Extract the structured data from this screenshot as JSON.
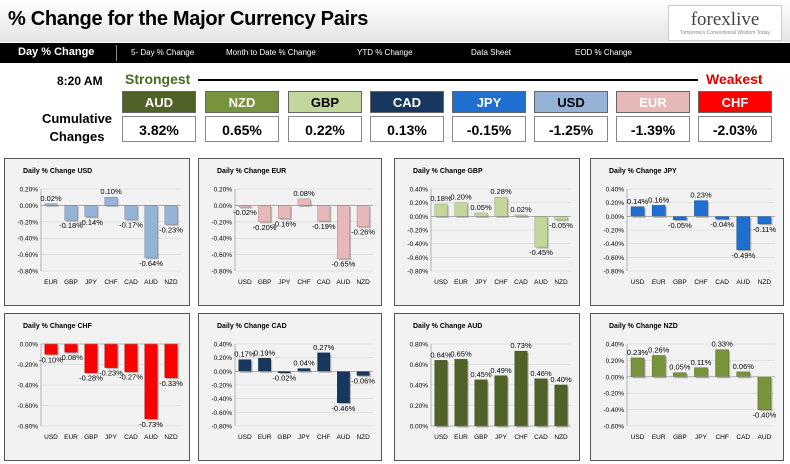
{
  "header": {
    "title": "% Change for the Major Currency Pairs",
    "logo_text": "forexlive",
    "logo_tagline": "Tomorrow's Conventional Wisdom Today"
  },
  "nav": {
    "items": [
      "Day % Change",
      "5- Day % Change",
      "Month to Date % Change",
      "YTD % Change",
      "Data Sheet",
      "EOD % Change"
    ]
  },
  "summary": {
    "time": "8:20 AM",
    "strongest_label": "Strongest",
    "weakest_label": "Weakest",
    "row_label": "Cumulative Changes",
    "currencies": [
      {
        "code": "AUD",
        "value": "3.82%",
        "color": "#4f6228",
        "text_color": "#ffffff"
      },
      {
        "code": "NZD",
        "value": "0.65%",
        "color": "#77933c",
        "text_color": "#ffffff"
      },
      {
        "code": "GBP",
        "value": "0.22%",
        "color": "#c3d69b",
        "text_color": "#000000"
      },
      {
        "code": "CAD",
        "value": "0.13%",
        "color": "#17375e",
        "text_color": "#ffffff"
      },
      {
        "code": "JPY",
        "value": "-0.15%",
        "color": "#1f6fd0",
        "text_color": "#ffffff"
      },
      {
        "code": "USD",
        "value": "-1.25%",
        "color": "#95b3d7",
        "text_color": "#000000"
      },
      {
        "code": "EUR",
        "value": "-1.39%",
        "color": "#e6b9b8",
        "text_color": "#ffffff"
      },
      {
        "code": "CHF",
        "value": "-2.03%",
        "color": "#ff0000",
        "text_color": "#ffffff"
      }
    ]
  },
  "chart_data": [
    {
      "type": "bar",
      "title": "Daily % Change USD",
      "categories": [
        "EUR",
        "GBP",
        "JPY",
        "CHF",
        "CAD",
        "AUD",
        "NZD"
      ],
      "values": [
        0.02,
        -0.18,
        -0.14,
        0.1,
        -0.17,
        -0.64,
        -0.23
      ],
      "labels": [
        "0.02%",
        "-0.18%",
        "-0.14%",
        "0.10%",
        "-0.17%",
        "-0.64%",
        "-0.23%"
      ],
      "ylim": [
        -0.8,
        0.2
      ],
      "yticks": [
        0.2,
        0,
        -0.2,
        -0.4,
        -0.6,
        -0.8
      ],
      "ytick_labels": [
        "0.20%",
        "0.00%",
        "-0.20%",
        "-0.40%",
        "-0.60%",
        "-0.80%"
      ],
      "color": "#95b3d7"
    },
    {
      "type": "bar",
      "title": "Daily % Change EUR",
      "categories": [
        "USD",
        "GBP",
        "JPY",
        "CHF",
        "CAD",
        "AUD",
        "NZD"
      ],
      "values": [
        -0.02,
        -0.2,
        -0.16,
        0.08,
        -0.19,
        -0.65,
        -0.26
      ],
      "labels": [
        "-0.02%",
        "-0.20%",
        "-0.16%",
        "0.08%",
        "-0.19%",
        "-0.65%",
        "-0.26%"
      ],
      "ylim": [
        -0.8,
        0.2
      ],
      "yticks": [
        0.2,
        0,
        -0.2,
        -0.4,
        -0.6,
        -0.8
      ],
      "ytick_labels": [
        "0.20%",
        "0.00%",
        "-0.20%",
        "-0.40%",
        "-0.60%",
        "-0.80%"
      ],
      "color": "#e6b9b8"
    },
    {
      "type": "bar",
      "title": "Daily % Change GBP",
      "categories": [
        "USD",
        "EUR",
        "JPY",
        "CHF",
        "CAD",
        "AUD",
        "NZD"
      ],
      "values": [
        0.18,
        0.2,
        0.05,
        0.28,
        0.02,
        -0.45,
        -0.05
      ],
      "labels": [
        "0.18%",
        "0.20%",
        "0.05%",
        "0.28%",
        "0.02%",
        "-0.45%",
        "-0.05%"
      ],
      "ylim": [
        -0.8,
        0.4
      ],
      "yticks": [
        0.4,
        0.2,
        0,
        -0.2,
        -0.4,
        -0.6,
        -0.8
      ],
      "ytick_labels": [
        "0.40%",
        "0.20%",
        "0.00%",
        "-0.20%",
        "-0.40%",
        "-0.60%",
        "-0.80%"
      ],
      "color": "#c3d69b"
    },
    {
      "type": "bar",
      "title": "Daily % Change JPY",
      "categories": [
        "USD",
        "EUR",
        "GBP",
        "CHF",
        "CAD",
        "AUD",
        "NZD"
      ],
      "values": [
        0.14,
        0.16,
        -0.05,
        0.23,
        -0.04,
        -0.49,
        -0.11
      ],
      "labels": [
        "0.14%",
        "0.16%",
        "-0.05%",
        "0.23%",
        "-0.04%",
        "-0.49%",
        "-0.11%"
      ],
      "ylim": [
        -0.8,
        0.4
      ],
      "yticks": [
        0.4,
        0.2,
        0,
        -0.2,
        -0.4,
        -0.6,
        -0.8
      ],
      "ytick_labels": [
        "0.40%",
        "0.20%",
        "0.00%",
        "-0.20%",
        "-0.40%",
        "-0.60%",
        "-0.80%"
      ],
      "color": "#1f6fd0"
    },
    {
      "type": "bar",
      "title": "Daily % Change CHF",
      "categories": [
        "USD",
        "EUR",
        "GBP",
        "JPY",
        "CAD",
        "AUD",
        "NZD"
      ],
      "values": [
        -0.1,
        -0.08,
        -0.28,
        -0.23,
        -0.27,
        -0.73,
        -0.33
      ],
      "labels": [
        "-0.10%",
        "-0.08%",
        "-0.28%",
        "-0.23%",
        "-0.27%",
        "-0.73%",
        "-0.33%"
      ],
      "ylim": [
        -0.8,
        0
      ],
      "yticks": [
        0,
        -0.2,
        -0.4,
        -0.6,
        -0.8
      ],
      "ytick_labels": [
        "0.00%",
        "-0.20%",
        "-0.40%",
        "-0.60%",
        "-0.80%"
      ],
      "color": "#ff0000"
    },
    {
      "type": "bar",
      "title": "Daily % Change CAD",
      "categories": [
        "USD",
        "EUR",
        "GBP",
        "JPY",
        "CHF",
        "AUD",
        "NZD"
      ],
      "values": [
        0.17,
        0.19,
        -0.02,
        0.04,
        0.27,
        -0.46,
        -0.06
      ],
      "labels": [
        "0.17%",
        "0.19%",
        "-0.02%",
        "0.04%",
        "0.27%",
        "-0.46%",
        "-0.06%"
      ],
      "ylim": [
        -0.8,
        0.4
      ],
      "yticks": [
        0.4,
        0.2,
        0,
        -0.2,
        -0.4,
        -0.6,
        -0.8
      ],
      "ytick_labels": [
        "0.40%",
        "0.20%",
        "0.00%",
        "-0.20%",
        "-0.40%",
        "-0.60%",
        "-0.80%"
      ],
      "color": "#17375e"
    },
    {
      "type": "bar",
      "title": "Daily % Change AUD",
      "categories": [
        "USD",
        "EUR",
        "GBP",
        "JPY",
        "CHF",
        "CAD",
        "NZD"
      ],
      "values": [
        0.64,
        0.65,
        0.45,
        0.49,
        0.73,
        0.46,
        0.4
      ],
      "labels": [
        "0.64%",
        "0.65%",
        "0.45%",
        "0.49%",
        "0.73%",
        "0.46%",
        "0.40%"
      ],
      "ylim": [
        0,
        0.8
      ],
      "yticks": [
        0.8,
        0.6,
        0.4,
        0.2,
        0
      ],
      "ytick_labels": [
        "0.80%",
        "0.60%",
        "0.40%",
        "0.20%",
        "0.00%"
      ],
      "color": "#4f6228"
    },
    {
      "type": "bar",
      "title": "Daily % Change NZD",
      "categories": [
        "USD",
        "EUR",
        "GBP",
        "JPY",
        "CHF",
        "CAD",
        "AUD"
      ],
      "values": [
        0.23,
        0.26,
        0.05,
        0.11,
        0.33,
        0.06,
        -0.4
      ],
      "labels": [
        "0.23%",
        "0.26%",
        "0.05%",
        "0.11%",
        "0.33%",
        "0.06%",
        "-0.40%"
      ],
      "ylim": [
        -0.6,
        0.4
      ],
      "yticks": [
        0.4,
        0.2,
        0,
        -0.2,
        -0.4,
        -0.6
      ],
      "ytick_labels": [
        "0.40%",
        "0.20%",
        "0.00%",
        "-0.20%",
        "-0.40%",
        "-0.60%"
      ],
      "color": "#77933c"
    }
  ]
}
